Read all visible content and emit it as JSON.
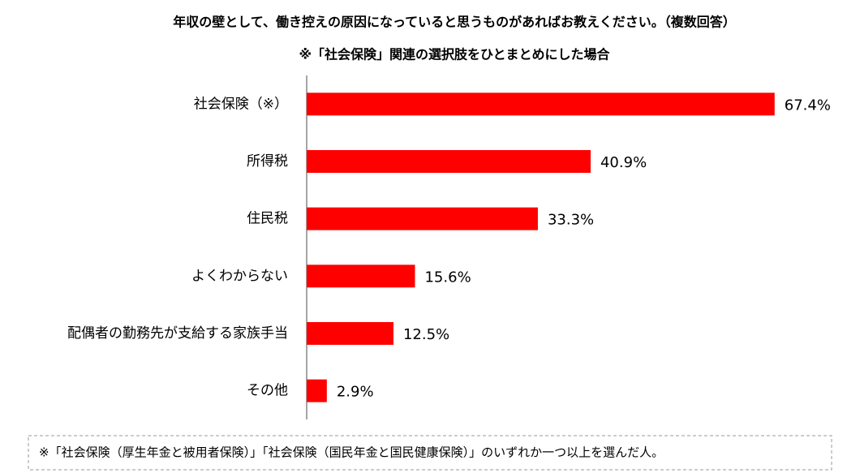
{
  "chart_data": {
    "type": "hbar",
    "title": "年収の壁として、働き控えの原因になっていると思うものがあればお教えください。（複数回答）",
    "subtitle": "※「社会保険」関連の選択肢をひとまとめにした場合",
    "categories": [
      "社会保険（※）",
      "所得税",
      "住民税",
      "よくわからない",
      "配偶者の勤務先が支給する家族手当",
      "その他"
    ],
    "values": [
      67.4,
      40.9,
      33.3,
      15.6,
      12.5,
      2.9
    ],
    "value_labels": [
      "67.4%",
      "40.9%",
      "33.3%",
      "15.6%",
      "12.5%",
      "2.9%"
    ],
    "color": "#ff0000",
    "xlim": [
      0,
      70
    ],
    "footnote": "※「社会保険（厚生年金と被用者保険）」「社会保険（国民年金と国民健康保険）」のいずれか一つ以上を選んだ人。"
  }
}
